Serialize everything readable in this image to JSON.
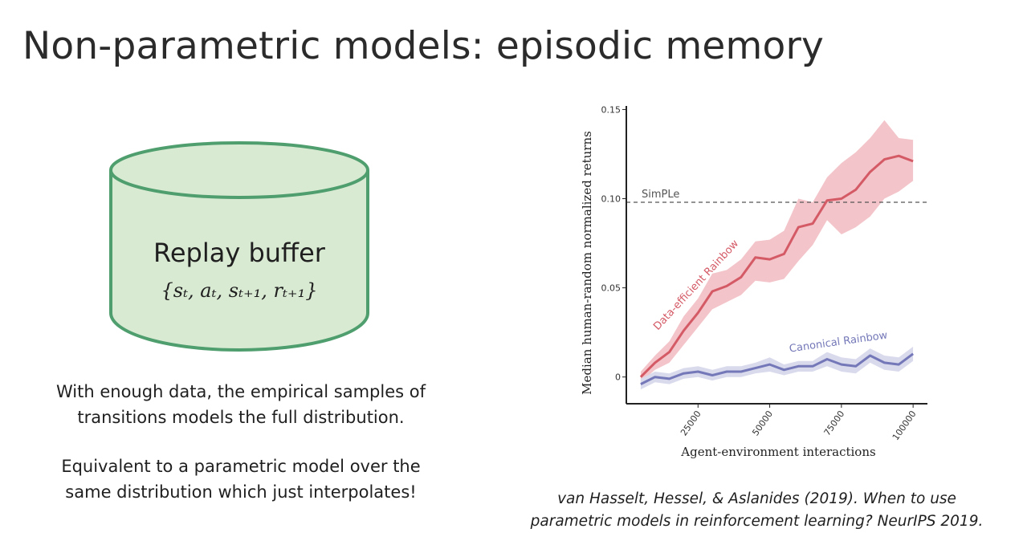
{
  "slide": {
    "title": "Non-parametric models: episodic memory",
    "buffer_label": "Replay buffer",
    "buffer_formula": "{sₜ, aₜ, sₜ₊₁, rₜ₊₁}",
    "paragraph1_line1": "With enough data, the empirical samples of",
    "paragraph1_line2": "transitions models the full distribution.",
    "paragraph2_line1": "Equivalent to a parametric model over the",
    "paragraph2_line2": "same distribution which just interpolates!",
    "citation_line1": "van Hasselt, Hessel, & Aslanides (2019). When to use",
    "citation_line2": "parametric models in reinforcement learning? NeurIPS 2019.",
    "cylinder_fill": "#d9ead3",
    "cylinder_stroke": "#4f9e6e"
  },
  "chart_data": {
    "type": "line",
    "xlabel": "Agent-environment interactions",
    "ylabel": "Median human-random normalized returns",
    "xlim": [
      0,
      105000
    ],
    "ylim": [
      -0.015,
      0.152
    ],
    "xticks": [
      25000,
      50000,
      75000,
      100000
    ],
    "xtick_labels": [
      "25000",
      "50000",
      "75000",
      "100000"
    ],
    "yticks": [
      0,
      0.05,
      0.1,
      0.15
    ],
    "ytick_labels": [
      "0",
      "0.05",
      "0.10",
      "0.15"
    ],
    "reference_line": {
      "label": "SimPLe",
      "y": 0.098,
      "color": "#555555",
      "style": "dashed"
    },
    "series": [
      {
        "name": "Data-efficient Rainbow",
        "color": "#d45a66",
        "band_color": "#f3c4c9",
        "x": [
          5000,
          10000,
          15000,
          20000,
          25000,
          30000,
          35000,
          40000,
          45000,
          50000,
          55000,
          60000,
          65000,
          70000,
          75000,
          80000,
          85000,
          90000,
          95000,
          100000
        ],
        "y": [
          0.0,
          0.008,
          0.014,
          0.026,
          0.036,
          0.048,
          0.051,
          0.056,
          0.067,
          0.066,
          0.069,
          0.084,
          0.086,
          0.099,
          0.1,
          0.105,
          0.115,
          0.122,
          0.124,
          0.121
        ],
        "y_low": [
          -0.003,
          0.004,
          0.008,
          0.018,
          0.028,
          0.038,
          0.042,
          0.046,
          0.054,
          0.053,
          0.055,
          0.065,
          0.074,
          0.088,
          0.08,
          0.084,
          0.09,
          0.1,
          0.104,
          0.11
        ],
        "y_high": [
          0.003,
          0.012,
          0.02,
          0.034,
          0.044,
          0.058,
          0.06,
          0.066,
          0.076,
          0.077,
          0.082,
          0.1,
          0.098,
          0.112,
          0.12,
          0.126,
          0.134,
          0.144,
          0.134,
          0.133
        ]
      },
      {
        "name": "Canonical Rainbow",
        "color": "#7478b8",
        "band_color": "#d9daec",
        "x": [
          5000,
          10000,
          15000,
          20000,
          25000,
          30000,
          35000,
          40000,
          45000,
          50000,
          55000,
          60000,
          65000,
          70000,
          75000,
          80000,
          85000,
          90000,
          95000,
          100000
        ],
        "y": [
          -0.004,
          0.0,
          -0.001,
          0.002,
          0.003,
          0.001,
          0.003,
          0.003,
          0.005,
          0.007,
          0.004,
          0.006,
          0.006,
          0.01,
          0.007,
          0.006,
          0.012,
          0.008,
          0.007,
          0.013
        ],
        "y_low": [
          -0.007,
          -0.003,
          -0.004,
          -0.001,
          0.0,
          -0.002,
          0.0,
          0.0,
          0.002,
          0.003,
          0.001,
          0.003,
          0.003,
          0.006,
          0.003,
          0.002,
          0.008,
          0.004,
          0.003,
          0.009
        ],
        "y_high": [
          -0.001,
          0.003,
          0.002,
          0.005,
          0.006,
          0.004,
          0.006,
          0.006,
          0.008,
          0.011,
          0.007,
          0.009,
          0.009,
          0.014,
          0.011,
          0.01,
          0.016,
          0.012,
          0.011,
          0.017
        ]
      }
    ],
    "grid": false,
    "legend": "inline labels"
  }
}
